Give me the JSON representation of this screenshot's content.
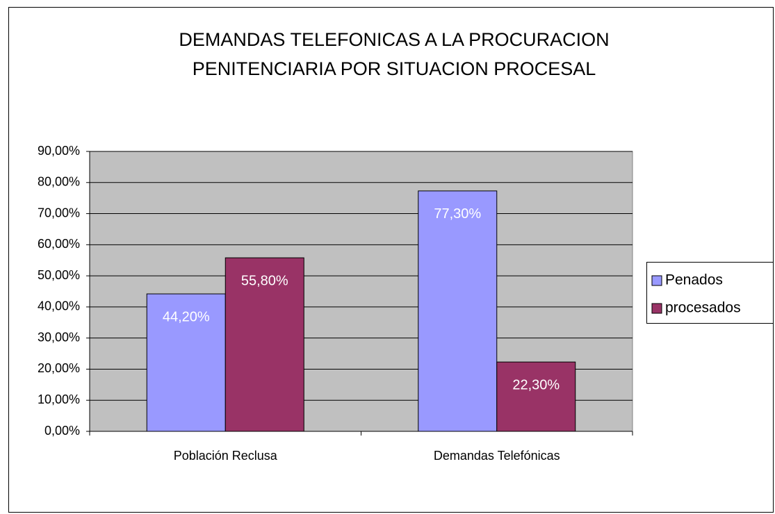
{
  "chart_data": {
    "type": "bar",
    "title": "DEMANDAS TELEFONICAS A LA PROCURACION PENITENCIARIA POR SITUACION PROCESAL",
    "categories": [
      "Población Reclusa",
      "Demandas Telefónicas"
    ],
    "series": [
      {
        "name": "Penados",
        "color": "#9999ff",
        "values": [
          44.2,
          77.3
        ],
        "value_labels": [
          "44,20%",
          "77,30%"
        ]
      },
      {
        "name": "procesados",
        "color": "#993366",
        "values": [
          55.8,
          22.3
        ],
        "value_labels": [
          "55,80%",
          "22,30%"
        ]
      }
    ],
    "ylim": [
      0,
      90
    ],
    "yticks": [
      {
        "value": 0,
        "label": "0,00%"
      },
      {
        "value": 10,
        "label": "10,00%"
      },
      {
        "value": 20,
        "label": "20,00%"
      },
      {
        "value": 30,
        "label": "30,00%"
      },
      {
        "value": 40,
        "label": "40,00%"
      },
      {
        "value": 50,
        "label": "50,00%"
      },
      {
        "value": 60,
        "label": "60,00%"
      },
      {
        "value": 70,
        "label": "70,00%"
      },
      {
        "value": 80,
        "label": "80,00%"
      },
      {
        "value": 90,
        "label": "90,00%"
      }
    ],
    "grid": true,
    "legend": "right"
  }
}
